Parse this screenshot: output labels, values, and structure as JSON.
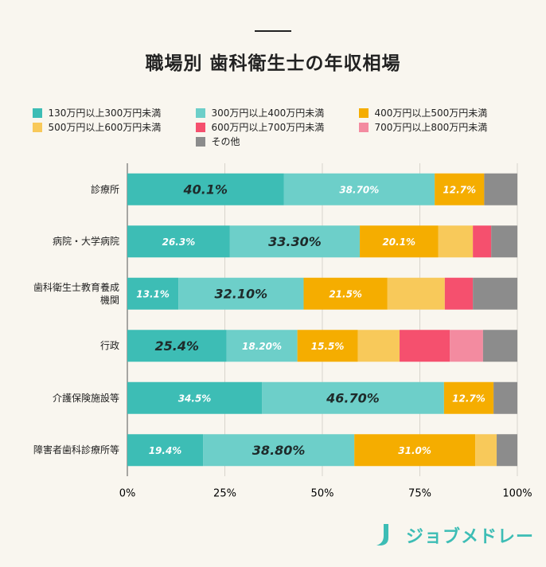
{
  "chart_data": {
    "type": "stacked-bar-horizontal",
    "title": "職場別 歯科衛生士の年収相場",
    "categories": [
      "診療所",
      "病院・大学病院",
      "歯科衛生士教育養成\n機関",
      "行政",
      "介護保険施設等",
      "障害者歯科診療所等"
    ],
    "series": [
      {
        "name": "130万円以上300万円未満",
        "color": "#3dbdb5",
        "values": [
          40.1,
          26.3,
          13.1,
          25.4,
          34.5,
          19.4
        ],
        "value_labels": [
          "40.1%",
          "26.3%",
          "13.1%",
          "25.4%",
          "34.5%",
          "19.4%"
        ]
      },
      {
        "name": "300万円以上400万円未満",
        "color": "#6dcfc9",
        "values": [
          38.7,
          33.3,
          32.1,
          18.2,
          46.7,
          38.8
        ],
        "value_labels": [
          "38.70%",
          "33.30%",
          "32.10%",
          "18.20%",
          "46.70%",
          "38.80%"
        ]
      },
      {
        "name": "400万円以上500万円未満",
        "color": "#f5ad00",
        "values": [
          12.7,
          20.1,
          21.5,
          15.5,
          12.7,
          31.0
        ],
        "value_labels": [
          "12.7%",
          "20.1%",
          "21.5%",
          "15.5%",
          "12.7%",
          "31.0%"
        ]
      },
      {
        "name": "500万円以上600万円未満",
        "color": "#f8c95a",
        "values": [
          0,
          8.9,
          14.7,
          10.7,
          0,
          5.5
        ]
      },
      {
        "name": "600万円以上700万円未満",
        "color": "#f5506e",
        "values": [
          0,
          4.7,
          7.2,
          12.9,
          0,
          0
        ]
      },
      {
        "name": "700万円以上800万円未満",
        "color": "#f38ba0",
        "values": [
          0,
          0,
          0,
          8.5,
          0,
          0
        ]
      },
      {
        "name": "その他",
        "color": "#8c8c8c",
        "values": [
          8.5,
          6.7,
          11.4,
          8.8,
          6.1,
          5.3
        ]
      }
    ],
    "xlim": [
      0,
      100
    ],
    "xticks": [
      {
        "value": 0,
        "label": "0%"
      },
      {
        "value": 25,
        "label": "25%"
      },
      {
        "value": 50,
        "label": "50%"
      },
      {
        "value": 75,
        "label": "75%"
      },
      {
        "value": 100,
        "label": "100%"
      }
    ],
    "grid": true
  },
  "brand": "ジョブメドレー"
}
